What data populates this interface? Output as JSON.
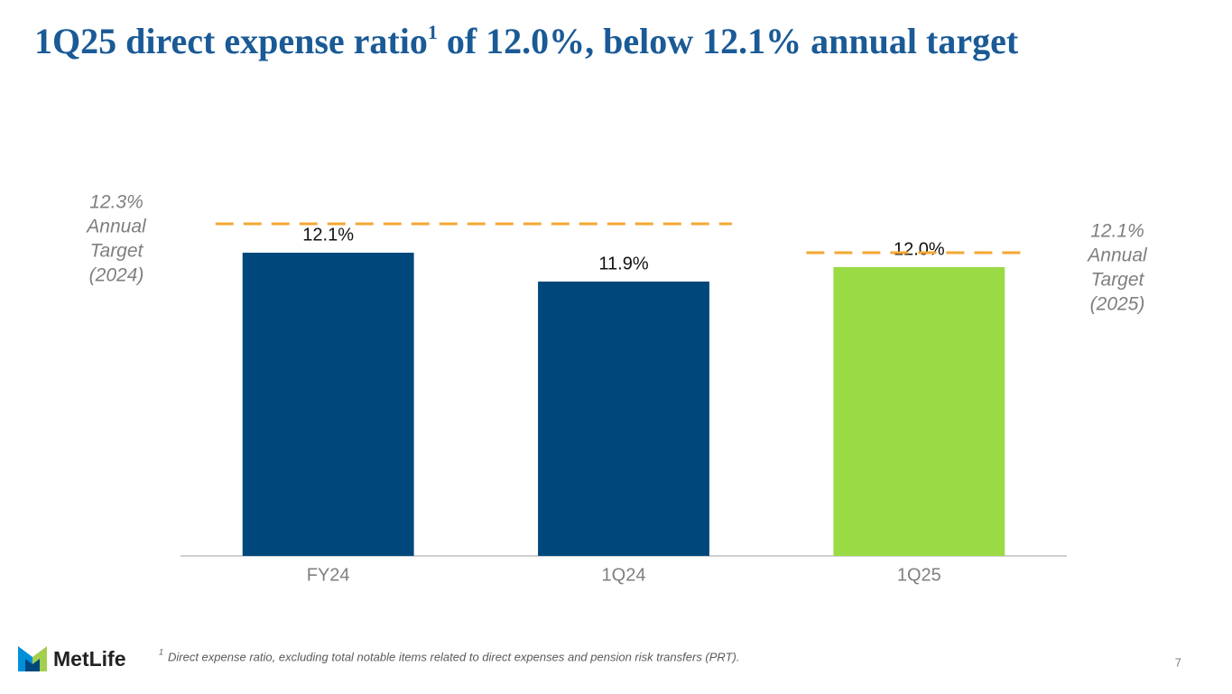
{
  "slide": {
    "title": "1Q25 direct expense ratio",
    "title_note_mark": "1",
    "title_rest": " of 12.0%, below 12.1% annual target",
    "logo": "MetLife",
    "footnote_mark": "1",
    "footnote": "Direct expense ratio, excluding total notable items related to direct expenses and pension risk transfers (PRT).",
    "page_number": "7"
  },
  "chart_data": {
    "type": "bar",
    "categories": [
      "FY24",
      "1Q24",
      "1Q25"
    ],
    "values": [
      12.1,
      11.9,
      12.0
    ],
    "value_labels": [
      "12.1%",
      "11.9%",
      "12.0%"
    ],
    "colors": [
      "#00487c",
      "#00487c",
      "#9ada45"
    ],
    "ylim": [
      10,
      12.5
    ],
    "targets": [
      {
        "value": 12.3,
        "label": [
          "12.3%",
          "Annual",
          "Target",
          "(2024)"
        ],
        "covers": [
          "FY24",
          "1Q24"
        ],
        "label_side": "left",
        "color": "#f5a733"
      },
      {
        "value": 12.1,
        "label": [
          "12.1%",
          "Annual",
          "Target",
          "(2025)"
        ],
        "covers": [
          "1Q25"
        ],
        "label_side": "right",
        "color": "#f5a733"
      }
    ]
  }
}
